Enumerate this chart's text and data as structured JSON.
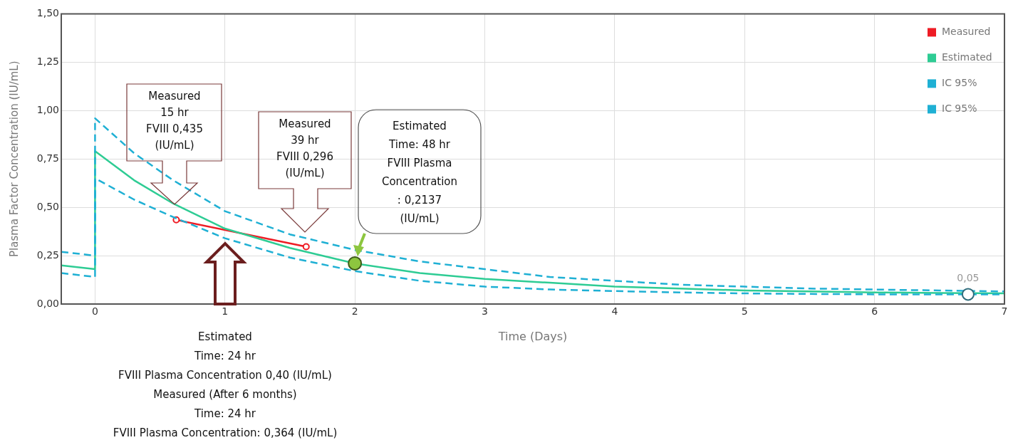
{
  "chart_data": {
    "type": "line",
    "xlabel": "Time (Days)",
    "ylabel": "Plasma Factor Concentration (IU/mL)",
    "xlim": [
      -0.26,
      7
    ],
    "xticks": [
      0,
      1,
      2,
      3,
      4,
      5,
      6,
      7
    ],
    "ylim": [
      0,
      1.5
    ],
    "yticks": [
      {
        "value": 0,
        "label": "0,00"
      },
      {
        "value": 0.25,
        "label": "0,25"
      },
      {
        "value": 0.5,
        "label": "0,50"
      },
      {
        "value": 0.75,
        "label": "0,75"
      },
      {
        "value": 1,
        "label": "1,00"
      },
      {
        "value": 1.25,
        "label": "1,25"
      },
      {
        "value": 1.5,
        "label": "1,50"
      }
    ],
    "grid": true,
    "legend": "top right",
    "series": [
      {
        "name": "Measured",
        "color": "#ee1c25",
        "marker": "circle",
        "x": [
          0.625,
          1.625
        ],
        "values": [
          0.435,
          0.296
        ]
      },
      {
        "name": "Estimated",
        "color": "#2ecc94",
        "marker": "none",
        "x": [
          -0.26,
          0,
          0,
          0.3,
          0.6,
          1,
          1.5,
          2,
          2.5,
          3,
          3.5,
          4,
          4.5,
          5,
          5.5,
          6,
          6.5,
          7
        ],
        "values": [
          0.2,
          0.18,
          0.79,
          0.64,
          0.52,
          0.39,
          0.29,
          0.21,
          0.16,
          0.13,
          0.11,
          0.09,
          0.08,
          0.07,
          0.065,
          0.06,
          0.057,
          0.055
        ]
      },
      {
        "name": "IC 95%",
        "color": "#1fb0d4",
        "marker": "none",
        "line_style": "dashed",
        "x": [
          -0.26,
          0,
          0,
          0.3,
          0.6,
          1,
          1.5,
          2,
          2.5,
          3,
          3.5,
          4,
          4.5,
          5,
          5.5,
          6,
          6.5,
          7
        ],
        "values": [
          0.27,
          0.25,
          0.96,
          0.78,
          0.64,
          0.48,
          0.36,
          0.28,
          0.22,
          0.18,
          0.14,
          0.12,
          0.1,
          0.09,
          0.08,
          0.075,
          0.07,
          0.065
        ]
      },
      {
        "name": "IC 95%",
        "color": "#1fb0d4",
        "marker": "none",
        "line_style": "dashed",
        "x": [
          -0.26,
          0,
          0,
          0.3,
          0.6,
          1,
          1.5,
          2,
          2.5,
          3,
          3.5,
          4,
          4.5,
          5,
          5.5,
          6,
          6.5,
          7
        ],
        "values": [
          0.16,
          0.14,
          0.65,
          0.54,
          0.45,
          0.34,
          0.24,
          0.17,
          0.12,
          0.09,
          0.075,
          0.067,
          0.06,
          0.055,
          0.052,
          0.05,
          0.05,
          0.05
        ]
      },
      {
        "type": "scatter",
        "color": "#8dc63f",
        "marker": "circle",
        "x": [
          2
        ],
        "values": [
          0.21
        ]
      },
      {
        "color": "#2e6b7b",
        "marker": "circle",
        "x": [
          6.72
        ],
        "values": [
          0.05
        ],
        "value_labels": [
          "0,05"
        ]
      }
    ],
    "annotations": [
      "Measured\n15 hr\nFVIII 0,435\n(IU/mL)",
      "Measured\n39 hr\nFVIII 0,296\n(IU/mL)",
      "Estimated\nTime: 48 hr\nFVIII Plasma\nConcentration\n: 0,2137\n(IU/mL)",
      "Estimated\nTime: 24 hr\nFVIII Plasma Concentration 0,40 (IU/mL)\nMeasured (After 6 months)\nTime: 24 hr\nFVIII Plasma Concentration: 0,364 (IU/mL)"
    ]
  }
}
